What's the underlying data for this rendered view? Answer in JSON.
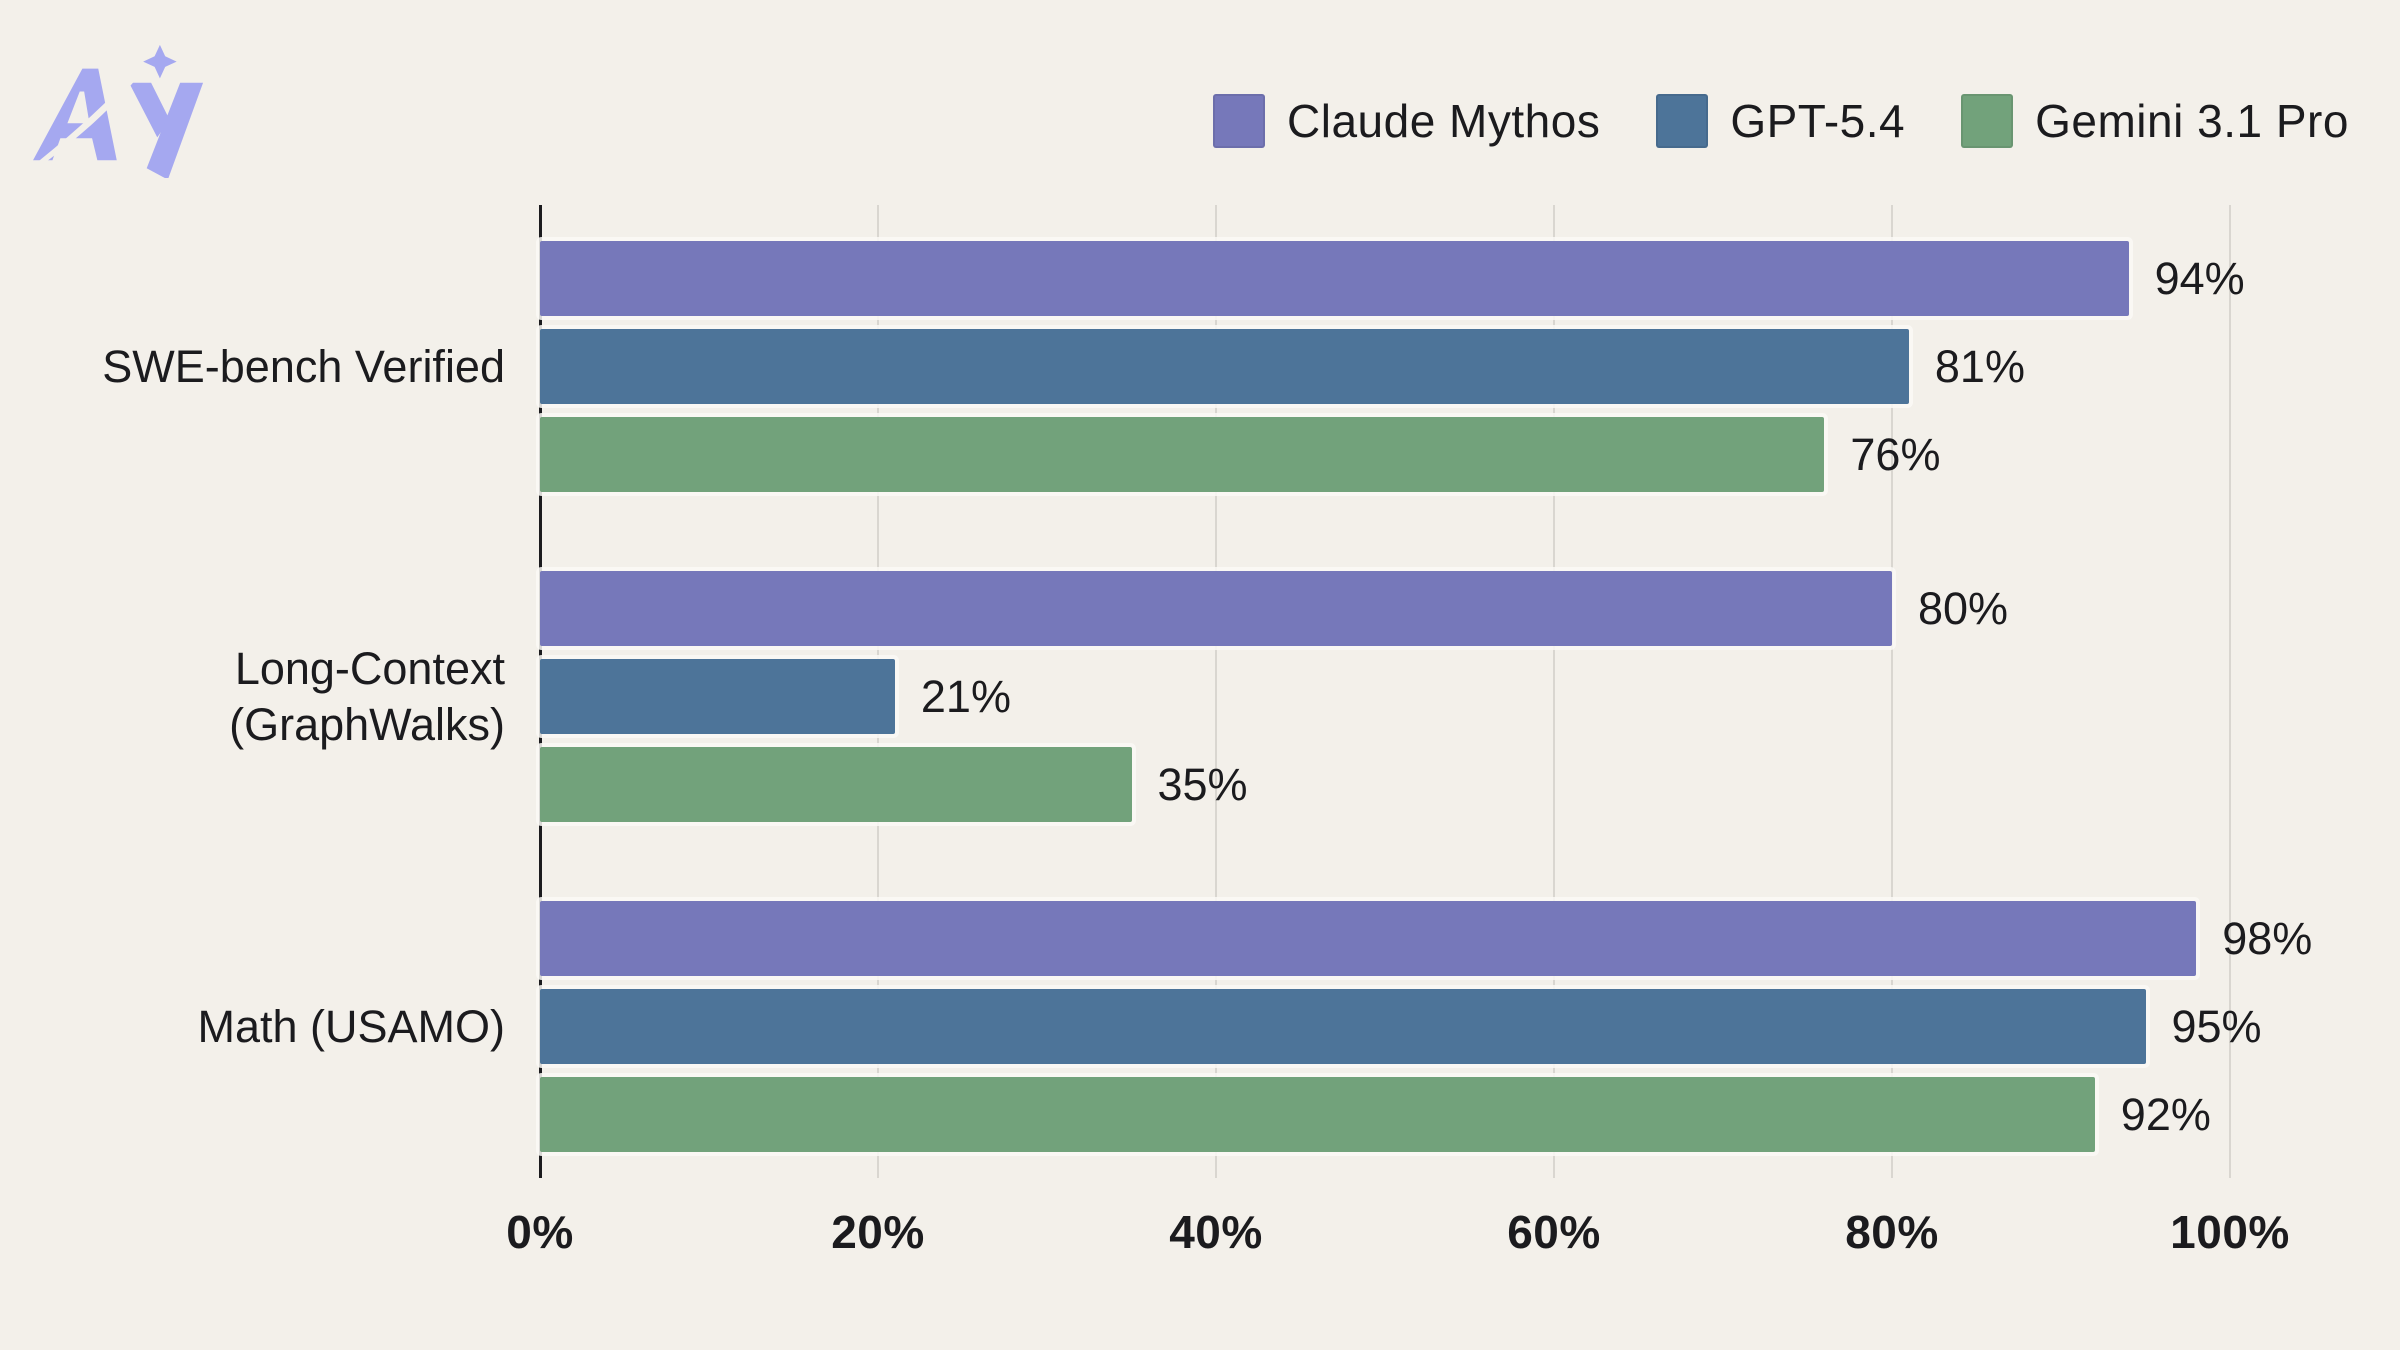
{
  "page": {
    "background": "#F3F0EA"
  },
  "logo": {
    "name": "AY logo",
    "color": "#A5A8F0"
  },
  "legend": {
    "items": [
      {
        "label": "Claude Mythos",
        "color": "#7678BA"
      },
      {
        "label": "GPT-5.4",
        "color": "#4D7499"
      },
      {
        "label": "Gemini 3.1 Pro",
        "color": "#72A27B"
      }
    ]
  },
  "chart_data": {
    "type": "bar",
    "orientation": "horizontal",
    "title": "",
    "categories": [
      "SWE-bench Verified",
      "Long-Context (GraphWalks)",
      "Math (USAMO)"
    ],
    "category_lines": [
      [
        "SWE-bench Verified"
      ],
      [
        "Long-Context",
        "(GraphWalks)"
      ],
      [
        "Math (USAMO)"
      ]
    ],
    "series": [
      {
        "name": "Claude Mythos",
        "color": "#7678BA",
        "values": [
          94,
          80,
          98
        ]
      },
      {
        "name": "GPT-5.4",
        "color": "#4D7499",
        "values": [
          81,
          21,
          95
        ]
      },
      {
        "name": "Gemini 3.1 Pro",
        "color": "#72A27B",
        "values": [
          76,
          35,
          92
        ]
      }
    ],
    "value_suffix": "%",
    "x_ticks": [
      {
        "label": "0%",
        "value": 0
      },
      {
        "label": "20%",
        "value": 20
      },
      {
        "label": "40%",
        "value": 40
      },
      {
        "label": "60%",
        "value": 60
      },
      {
        "label": "80%",
        "value": 80
      },
      {
        "label": "100%",
        "value": 100
      }
    ],
    "xlim": [
      0,
      100
    ],
    "grid": true,
    "legend_position": "top-right",
    "colors": {
      "gridline": "#D9D6D0",
      "axis": "#1B1B1E",
      "text": "#1B1B1E"
    }
  }
}
